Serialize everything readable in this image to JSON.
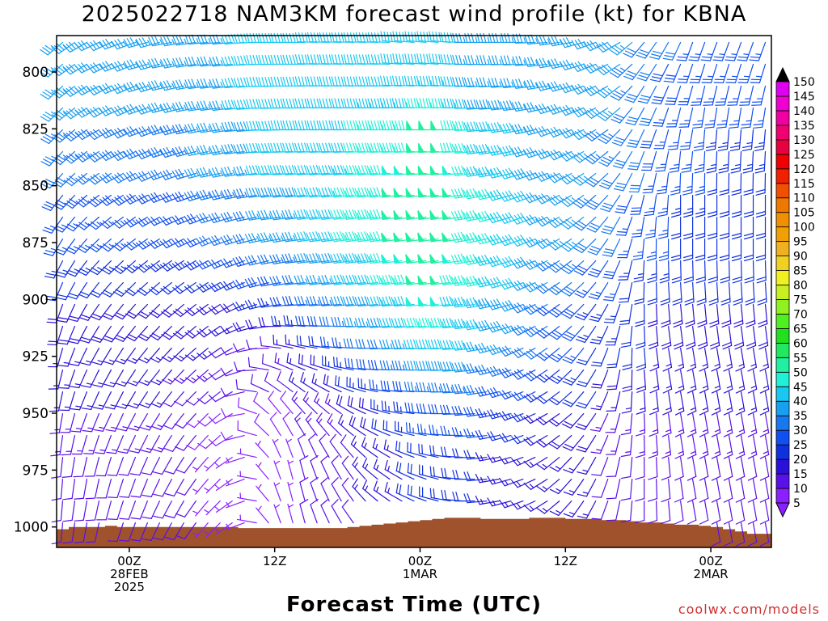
{
  "title": "2025022718 NAM3KM forecast wind profile (kt) for KBNA",
  "watermark": "coolwx.com/models",
  "chart_data": {
    "type": "wind-barb profile",
    "xlabel": "Forecast Time (UTC)",
    "ylabel": "",
    "y_ticks": [
      800,
      825,
      850,
      875,
      900,
      925,
      950,
      975,
      1000
    ],
    "y_lim_hpa": [
      784,
      1009
    ],
    "x_ticks": [
      {
        "hour": 6,
        "lines": [
          "00Z",
          "28FEB",
          "2025"
        ]
      },
      {
        "hour": 18,
        "lines": [
          "12Z"
        ]
      },
      {
        "hour": 30,
        "lines": [
          "00Z",
          "1MAR"
        ]
      },
      {
        "hour": 42,
        "lines": [
          "12Z"
        ]
      },
      {
        "hour": 54,
        "lines": [
          "00Z",
          "2MAR"
        ]
      }
    ],
    "x_lim_hours": [
      0,
      59
    ],
    "colorbar": {
      "levels_kt": [
        5,
        10,
        15,
        20,
        25,
        30,
        35,
        40,
        45,
        50,
        55,
        60,
        65,
        70,
        75,
        80,
        85,
        90,
        95,
        100,
        105,
        110,
        115,
        120,
        125,
        130,
        135,
        140,
        145,
        150
      ],
      "colors": [
        "#8a20ff",
        "#5a10e8",
        "#2a10d8",
        "#1030e0",
        "#1050f0",
        "#1878f0",
        "#18a0f0",
        "#18c8f0",
        "#20f0d8",
        "#20f0a0",
        "#20e860",
        "#20e020",
        "#50f020",
        "#90f020",
        "#c8f020",
        "#f0f020",
        "#f0d020",
        "#f0b020",
        "#f0a000",
        "#f09000",
        "#f07800",
        "#f05000",
        "#f02000",
        "#f00000",
        "#e80040",
        "#f00070",
        "#f000a0",
        "#f000d0",
        "#e000f0"
      ],
      "extend_top_color": "#000000",
      "extend_bottom_color": "#8a20ff"
    },
    "surface_pressure_hpa": [
      1001,
      1000,
      1000,
      1000,
      999.5,
      1000,
      1000,
      1000,
      1000,
      1000,
      1000,
      1000,
      1000,
      1000,
      1000,
      1000.5,
      1000.5,
      1000.5,
      1000.5,
      1000.5,
      1000.5,
      1000.5,
      1000.5,
      1000.5,
      1000,
      999.5,
      999,
      998.5,
      998,
      997.5,
      997,
      996.5,
      996,
      996,
      996,
      996.5,
      996.5,
      996.5,
      996.5,
      996,
      996,
      996,
      996.5,
      996.5,
      996.5,
      997,
      997,
      997.5,
      998,
      998,
      998.5,
      999,
      999,
      999.5,
      1000,
      1001,
      1002,
      1003,
      1003
    ],
    "wind_direction_note": "compass degrees wind blows from",
    "profiles": [
      {
        "pressure_hpa": 790,
        "dir_deg": [
          230,
          235,
          240,
          245,
          245,
          250,
          250,
          255,
          255,
          260,
          260,
          262,
          265,
          265,
          265,
          265,
          268,
          270,
          270,
          270,
          270,
          272,
          272,
          272,
          272,
          272,
          272,
          272,
          275,
          275,
          275,
          275,
          275,
          272,
          270,
          270,
          270,
          270,
          270,
          268,
          265,
          262,
          260,
          255,
          250,
          245,
          240,
          230,
          220,
          215,
          210,
          205,
          200,
          200,
          200,
          200,
          200,
          200,
          200
        ],
        "speed_kt": [
          35,
          35,
          35,
          35,
          35,
          35,
          35,
          35,
          35,
          35,
          35,
          35,
          35,
          35,
          35,
          40,
          40,
          40,
          40,
          40,
          40,
          40,
          40,
          40,
          40,
          40,
          40,
          40,
          40,
          40,
          40,
          40,
          40,
          40,
          35,
          35,
          35,
          35,
          35,
          35,
          35,
          35,
          35,
          35,
          35,
          35,
          35,
          35,
          30,
          30,
          30,
          30,
          25,
          25,
          25,
          25,
          25,
          25,
          25
        ]
      },
      {
        "pressure_hpa": 825,
        "dir_deg": [
          225,
          230,
          235,
          240,
          240,
          245,
          245,
          250,
          250,
          255,
          255,
          258,
          260,
          262,
          262,
          265,
          265,
          268,
          268,
          270,
          270,
          270,
          270,
          270,
          270,
          270,
          270,
          270,
          270,
          270,
          270,
          270,
          270,
          270,
          268,
          265,
          265,
          262,
          260,
          258,
          255,
          250,
          248,
          245,
          240,
          235,
          225,
          215,
          205,
          200,
          195,
          190,
          190,
          185,
          185,
          185,
          185,
          185,
          185
        ],
        "speed_kt": [
          35,
          35,
          35,
          35,
          35,
          35,
          35,
          35,
          35,
          35,
          35,
          35,
          35,
          35,
          35,
          40,
          40,
          40,
          40,
          40,
          40,
          40,
          40,
          40,
          40,
          45,
          45,
          45,
          45,
          45,
          50,
          50,
          50,
          45,
          45,
          40,
          40,
          40,
          40,
          35,
          35,
          35,
          35,
          35,
          35,
          35,
          35,
          30,
          30,
          30,
          25,
          25,
          25,
          25,
          25,
          25,
          25,
          25,
          25
        ]
      },
      {
        "pressure_hpa": 850,
        "dir_deg": [
          220,
          225,
          230,
          235,
          235,
          240,
          240,
          245,
          245,
          250,
          250,
          252,
          255,
          258,
          258,
          260,
          262,
          265,
          265,
          265,
          265,
          265,
          265,
          265,
          265,
          265,
          265,
          265,
          265,
          265,
          265,
          265,
          265,
          265,
          262,
          260,
          258,
          255,
          252,
          250,
          248,
          245,
          240,
          235,
          230,
          225,
          215,
          205,
          195,
          190,
          185,
          180,
          180,
          180,
          180,
          180,
          180,
          180,
          180
        ],
        "speed_kt": [
          30,
          30,
          30,
          30,
          30,
          30,
          30,
          30,
          30,
          30,
          30,
          30,
          35,
          35,
          35,
          35,
          35,
          40,
          40,
          40,
          40,
          40,
          40,
          45,
          45,
          45,
          45,
          45,
          50,
          50,
          50,
          50,
          50,
          50,
          45,
          45,
          45,
          40,
          40,
          40,
          35,
          35,
          35,
          35,
          35,
          30,
          30,
          30,
          30,
          25,
          25,
          25,
          25,
          25,
          20,
          20,
          20,
          20,
          20
        ]
      },
      {
        "pressure_hpa": 875,
        "dir_deg": [
          210,
          215,
          220,
          225,
          228,
          230,
          232,
          235,
          238,
          240,
          242,
          245,
          245,
          248,
          250,
          252,
          255,
          258,
          260,
          260,
          262,
          262,
          262,
          262,
          262,
          262,
          262,
          262,
          262,
          262,
          262,
          262,
          262,
          262,
          260,
          258,
          255,
          252,
          250,
          248,
          245,
          240,
          235,
          230,
          225,
          215,
          205,
          195,
          185,
          180,
          180,
          180,
          180,
          180,
          180,
          180,
          180,
          180,
          180
        ],
        "speed_kt": [
          25,
          25,
          25,
          25,
          25,
          25,
          25,
          25,
          25,
          25,
          25,
          25,
          25,
          30,
          30,
          30,
          30,
          35,
          35,
          35,
          35,
          40,
          40,
          40,
          45,
          45,
          45,
          45,
          50,
          50,
          50,
          50,
          50,
          50,
          45,
          45,
          45,
          40,
          40,
          40,
          35,
          35,
          35,
          35,
          30,
          30,
          30,
          25,
          25,
          25,
          25,
          20,
          20,
          20,
          20,
          20,
          20,
          20,
          20
        ]
      },
      {
        "pressure_hpa": 900,
        "dir_deg": [
          200,
          205,
          210,
          215,
          218,
          220,
          222,
          225,
          225,
          228,
          230,
          232,
          235,
          238,
          240,
          245,
          250,
          255,
          260,
          262,
          265,
          265,
          265,
          265,
          265,
          265,
          265,
          265,
          265,
          265,
          265,
          265,
          265,
          265,
          262,
          260,
          258,
          255,
          250,
          245,
          240,
          235,
          230,
          225,
          218,
          210,
          200,
          190,
          180,
          178,
          175,
          175,
          175,
          175,
          175,
          175,
          175,
          175,
          175
        ],
        "speed_kt": [
          20,
          20,
          20,
          20,
          20,
          20,
          20,
          20,
          20,
          20,
          20,
          20,
          20,
          20,
          20,
          20,
          25,
          25,
          25,
          30,
          30,
          35,
          35,
          35,
          40,
          40,
          40,
          45,
          45,
          45,
          50,
          50,
          50,
          45,
          45,
          45,
          40,
          40,
          40,
          35,
          35,
          30,
          30,
          30,
          25,
          25,
          25,
          20,
          20,
          20,
          20,
          20,
          20,
          20,
          20,
          20,
          20,
          20,
          20
        ]
      },
      {
        "pressure_hpa": 925,
        "dir_deg": [
          195,
          200,
          205,
          208,
          210,
          212,
          215,
          218,
          220,
          222,
          225,
          228,
          230,
          235,
          240,
          250,
          260,
          270,
          280,
          285,
          285,
          282,
          280,
          278,
          275,
          272,
          270,
          268,
          268,
          268,
          268,
          268,
          268,
          266,
          264,
          260,
          255,
          250,
          245,
          240,
          235,
          230,
          225,
          218,
          210,
          200,
          190,
          180,
          175,
          172,
          170,
          170,
          170,
          170,
          170,
          170,
          170,
          170,
          170
        ],
        "speed_kt": [
          15,
          15,
          15,
          15,
          15,
          15,
          15,
          15,
          15,
          15,
          15,
          15,
          15,
          15,
          10,
          10,
          10,
          10,
          10,
          15,
          15,
          20,
          20,
          25,
          25,
          30,
          30,
          30,
          35,
          35,
          40,
          40,
          40,
          40,
          40,
          35,
          35,
          35,
          30,
          30,
          30,
          25,
          25,
          25,
          20,
          20,
          20,
          20,
          20,
          15,
          15,
          15,
          15,
          15,
          15,
          15,
          15,
          15,
          15
        ]
      },
      {
        "pressure_hpa": 950,
        "dir_deg": [
          190,
          195,
          200,
          202,
          205,
          205,
          208,
          210,
          212,
          215,
          218,
          222,
          225,
          230,
          240,
          260,
          290,
          310,
          320,
          320,
          318,
          315,
          310,
          305,
          300,
          295,
          290,
          285,
          280,
          278,
          275,
          272,
          270,
          268,
          265,
          262,
          258,
          255,
          250,
          245,
          240,
          235,
          230,
          222,
          215,
          205,
          195,
          185,
          178,
          175,
          172,
          170,
          170,
          170,
          170,
          170,
          170,
          170,
          170
        ],
        "speed_kt": [
          15,
          15,
          15,
          15,
          15,
          15,
          15,
          15,
          15,
          15,
          10,
          10,
          10,
          10,
          10,
          10,
          10,
          10,
          10,
          10,
          15,
          15,
          15,
          15,
          20,
          20,
          20,
          25,
          25,
          25,
          30,
          30,
          30,
          30,
          30,
          30,
          25,
          25,
          25,
          25,
          20,
          20,
          20,
          20,
          20,
          15,
          15,
          15,
          15,
          15,
          15,
          15,
          15,
          15,
          15,
          15,
          15,
          15,
          15
        ]
      },
      {
        "pressure_hpa": 975,
        "dir_deg": [
          185,
          188,
          190,
          192,
          195,
          198,
          200,
          202,
          205,
          208,
          210,
          215,
          220,
          225,
          235,
          250,
          280,
          320,
          340,
          345,
          345,
          340,
          335,
          330,
          325,
          318,
          310,
          305,
          300,
          295,
          290,
          285,
          280,
          275,
          270,
          265,
          260,
          255,
          250,
          245,
          238,
          230,
          222,
          215,
          208,
          200,
          192,
          185,
          180,
          178,
          175,
          172,
          170,
          170,
          170,
          170,
          170,
          170,
          170
        ],
        "speed_kt": [
          10,
          10,
          10,
          10,
          10,
          10,
          10,
          10,
          10,
          10,
          10,
          10,
          5,
          5,
          5,
          5,
          5,
          5,
          5,
          5,
          10,
          10,
          10,
          10,
          10,
          15,
          15,
          15,
          15,
          20,
          20,
          20,
          20,
          20,
          20,
          20,
          15,
          15,
          15,
          15,
          15,
          15,
          15,
          15,
          15,
          10,
          10,
          10,
          10,
          10,
          10,
          10,
          10,
          10,
          10,
          10,
          10,
          10,
          10
        ]
      }
    ]
  }
}
